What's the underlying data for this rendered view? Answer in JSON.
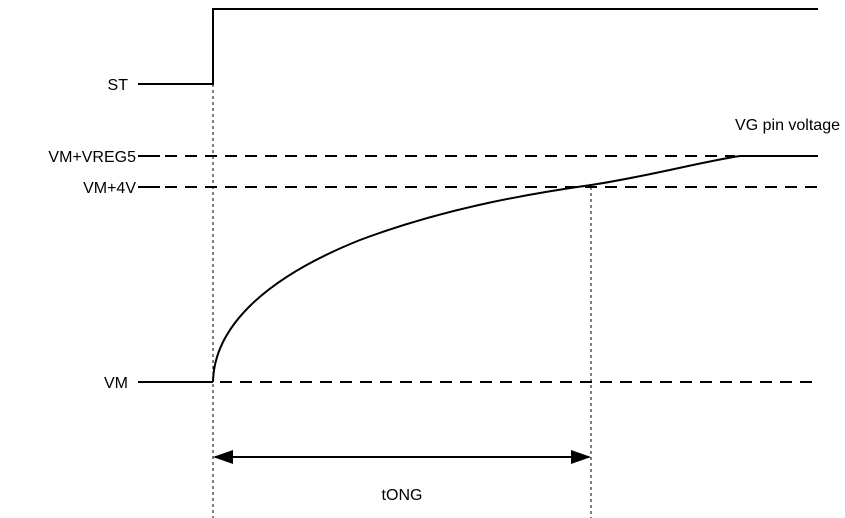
{
  "signals": {
    "st": "ST",
    "vm_vreg5": "VM+VREG5",
    "vm_4v": "VM+4V",
    "vm": "VM"
  },
  "curve_label": "VG pin voltage",
  "interval_label": "tONG"
}
